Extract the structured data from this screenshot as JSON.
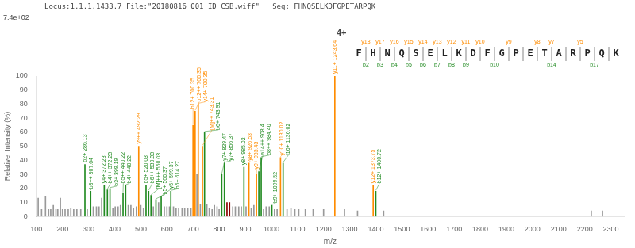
{
  "chart_data": {
    "type": "bar",
    "title": "Locus:1.1.1.1433.7 File:\"20180816_001_ID_CSB.wiff\"   Seq: FHNQSELKDFGPETARPQK",
    "subtitle": "7.4e+02",
    "x_label": "m/z",
    "y_label": "Relative  Intensity (%)",
    "x": [
      107,
      120,
      135,
      147,
      155,
      165,
      175,
      182,
      192,
      200,
      210,
      222,
      232,
      243,
      255,
      270,
      286,
      295,
      308,
      318,
      330,
      340,
      350,
      360,
      372,
      382,
      393,
      402,
      413,
      422,
      432,
      442,
      452,
      462,
      472,
      483,
      492,
      500,
      510,
      520,
      530,
      539,
      548,
      558,
      568,
      578,
      590,
      600,
      610,
      615,
      625,
      635,
      645,
      658,
      668,
      680,
      692,
      700,
      708,
      715,
      720,
      728,
      736,
      744,
      753,
      762,
      773,
      782,
      792,
      800,
      810,
      820,
      830,
      840,
      852,
      862,
      875,
      885,
      895,
      903,
      914,
      923,
      933,
      943,
      952,
      961,
      970,
      980,
      992,
      1002,
      1012,
      1022,
      1035,
      1045,
      1060,
      1075,
      1090,
      1105,
      1130,
      1160,
      1200,
      1243,
      1280,
      1330,
      1390,
      1400,
      1430,
      2225,
      2268
    ],
    "values": [
      13,
      5,
      14,
      5,
      5,
      8,
      5,
      5,
      13,
      5,
      5,
      5,
      6,
      5,
      5,
      5,
      37,
      5,
      18,
      7,
      7,
      7,
      13,
      22,
      19,
      20,
      6,
      7,
      7,
      8,
      17,
      22,
      8,
      8,
      6,
      7,
      50,
      8,
      6,
      22,
      18,
      15,
      7,
      12,
      10,
      14,
      7,
      7,
      7,
      18,
      7,
      6,
      6,
      6,
      6,
      6,
      6,
      65,
      75,
      30,
      80,
      9,
      50,
      60,
      9,
      6,
      5,
      8,
      7,
      5,
      30,
      38,
      10,
      10,
      7,
      7,
      7,
      7,
      35,
      7,
      38,
      6,
      8,
      30,
      32,
      42,
      5,
      7,
      7,
      8,
      5,
      5,
      42,
      38,
      5,
      6,
      5,
      5,
      5,
      5,
      5,
      100,
      5,
      4,
      22,
      18,
      4,
      4,
      4
    ],
    "colors": [
      "#999999",
      "#999999",
      "#999999",
      "#999999",
      "#999999",
      "#999999",
      "#999999",
      "#999999",
      "#999999",
      "#999999",
      "#999999",
      "#999999",
      "#999999",
      "#999999",
      "#999999",
      "#999999",
      "#228B22",
      "#999999",
      "#228B22",
      "#999999",
      "#999999",
      "#999999",
      "#999999",
      "#228B22",
      "#228B22",
      "#228B22",
      "#999999",
      "#999999",
      "#999999",
      "#999999",
      "#228B22",
      "#228B22",
      "#999999",
      "#999999",
      "#999999",
      "#999999",
      "#FF8C00",
      "#999999",
      "#999999",
      "#228B22",
      "#228B22",
      "#228B22",
      "#999999",
      "#228B22",
      "#999999",
      "#228B22",
      "#999999",
      "#999999",
      "#999999",
      "#228B22",
      "#999999",
      "#999999",
      "#999999",
      "#999999",
      "#999999",
      "#999999",
      "#999999",
      "#FF8C00",
      "#FF8C00",
      "#999999",
      "#FF8C00",
      "#999999",
      "#FF8C00",
      "#228B22",
      "#999999",
      "#999999",
      "#999999",
      "#999999",
      "#999999",
      "#999999",
      "#228B22",
      "#228B22",
      "#8B0000",
      "#8B0000",
      "#999999",
      "#999999",
      "#999999",
      "#999999",
      "#228B22",
      "#999999",
      "#FF8C00",
      "#999999",
      "#999999",
      "#FF8C00",
      "#228B22",
      "#228B22",
      "#999999",
      "#999999",
      "#999999",
      "#228B22",
      "#999999",
      "#999999",
      "#FF8C00",
      "#228B22",
      "#999999",
      "#999999",
      "#999999",
      "#999999",
      "#999999",
      "#999999",
      "#999999",
      "#FF8C00",
      "#999999",
      "#999999",
      "#FF8C00",
      "#228B22",
      "#999999",
      "#999999",
      "#999999"
    ],
    "annotations": [
      {
        "x": 286,
        "y": 37,
        "text": "b2+ 286.13",
        "color": "#228B22"
      },
      {
        "x": 308,
        "y": 18,
        "text": "b3++ 307.64",
        "color": "#228B22"
      },
      {
        "x": 360,
        "y": 22,
        "text": "y4+ 372.23",
        "color": "#228B22"
      },
      {
        "x": 372,
        "y": 19,
        "text": "b4++ 372.23",
        "color": "#228B22"
      },
      {
        "x": 382,
        "y": 20,
        "text": "b3+ 399.19",
        "color": "#228B22"
      },
      {
        "x": 432,
        "y": 17,
        "text": "b5++ 440.22",
        "color": "#228B22"
      },
      {
        "x": 442,
        "y": 22,
        "text": "b4+ 440.22",
        "color": "#228B22"
      },
      {
        "x": 492,
        "y": 50,
        "text": "y9++ 492.29",
        "color": "#FF8C00"
      },
      {
        "x": 520,
        "y": 22,
        "text": "b5+ 520.03",
        "color": "#228B22"
      },
      {
        "x": 530,
        "y": 18,
        "text": "b6++ 530.33",
        "color": "#228B22"
      },
      {
        "x": 539,
        "y": 15,
        "text": "[M]+++ 550.03",
        "color": "#228B22"
      },
      {
        "x": 558,
        "y": 12,
        "text": "b5+ 560.37",
        "color": "#228B22"
      },
      {
        "x": 578,
        "y": 14,
        "text": "y5+ 599.37",
        "color": "#228B22"
      },
      {
        "x": 615,
        "y": 18,
        "text": "b5+ 614.27",
        "color": "#228B22"
      },
      {
        "x": 700,
        "y": 65,
        "text": "b12+ 700.35",
        "color": "#FF8C00"
      },
      {
        "x": 708,
        "y": 75,
        "text": "b12++ 700.35",
        "color": "#FF8C00"
      },
      {
        "x": 720,
        "y": 80,
        "text": "y14+ 700.35",
        "color": "#FF8C00"
      },
      {
        "x": 736,
        "y": 50,
        "text": "[M]++ 743.31",
        "color": "#FF8C00"
      },
      {
        "x": 744,
        "y": 60,
        "text": "b6+ 743.91",
        "color": "#228B22"
      },
      {
        "x": 810,
        "y": 30,
        "text": "y7+ 829.47",
        "color": "#228B22"
      },
      {
        "x": 820,
        "y": 38,
        "text": "y7+ 856.37",
        "color": "#228B22"
      },
      {
        "x": 895,
        "y": 35,
        "text": "y8+ 985.02",
        "color": "#228B22"
      },
      {
        "x": 914,
        "y": 38,
        "text": "y8+ 926.53",
        "color": "#FF8C00"
      },
      {
        "x": 943,
        "y": 30,
        "text": "y9+ 983.43",
        "color": "#FF8C00"
      },
      {
        "x": 952,
        "y": 32,
        "text": "a14++ 908.4",
        "color": "#228B22"
      },
      {
        "x": 961,
        "y": 42,
        "text": "b8++ 984.40",
        "color": "#228B22"
      },
      {
        "x": 1002,
        "y": 8,
        "text": "b9+ 1099.52",
        "color": "#228B22"
      },
      {
        "x": 1035,
        "y": 42,
        "text": "y10+ 1130.02",
        "color": "#FF8C00"
      },
      {
        "x": 1045,
        "y": 38,
        "text": "l10+ 1130.02",
        "color": "#228B22"
      },
      {
        "x": 1243,
        "y": 100,
        "text": "y11+ 1243.64",
        "color": "#FF8C00"
      },
      {
        "x": 1390,
        "y": 22,
        "text": "y12+ 1373.75",
        "color": "#FF8C00"
      },
      {
        "x": 1400,
        "y": 18,
        "text": "b12+ 1400.72",
        "color": "#228B22"
      }
    ],
    "xlim": [
      100,
      2350
    ],
    "xticks": [
      100,
      200,
      300,
      400,
      500,
      600,
      700,
      800,
      900,
      1000,
      1100,
      1200,
      1300,
      1400,
      1500,
      1600,
      1700,
      1800,
      1900,
      2000,
      2100,
      2200,
      2300
    ],
    "ylim": [
      0,
      100
    ],
    "yticks": [
      0,
      10,
      20,
      30,
      40,
      50,
      60,
      70,
      80,
      90,
      100
    ],
    "grid": false,
    "sequence": {
      "charge": "4+",
      "residues": [
        "F",
        "H",
        "N",
        "Q",
        "S",
        "E",
        "L",
        "K",
        "D",
        "F",
        "G",
        "P",
        "E",
        "T",
        "A",
        "R",
        "P",
        "Q",
        "K"
      ],
      "y_ions": {
        "color": "#FF8C00",
        "labels": [
          null,
          "y18",
          "y17",
          "y16",
          "y15",
          "y14",
          "y13",
          "y12",
          "y11",
          "y10",
          null,
          "y9",
          null,
          "y8",
          "y7",
          null,
          "y5",
          null,
          null
        ]
      },
      "b_ions": {
        "color": "#228B22",
        "labels": [
          "b2",
          "b3",
          "b4",
          "b5",
          "b6",
          "b7",
          "b8",
          "b9",
          null,
          "b10",
          null,
          null,
          null,
          "b14",
          null,
          null,
          "b17",
          null,
          null
        ]
      }
    }
  }
}
